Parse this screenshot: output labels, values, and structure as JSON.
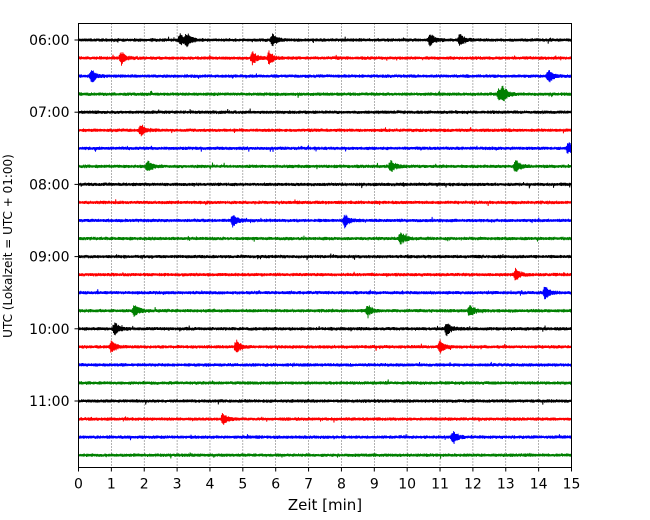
{
  "chart_data": {
    "type": "line",
    "title": "",
    "xlabel": "Zeit  [min]",
    "ylabel": "UTC (Lokalzeit = UTC + 01:00)",
    "xlim": [
      0,
      15
    ],
    "x_ticks": [
      0,
      1,
      2,
      3,
      4,
      5,
      6,
      7,
      8,
      9,
      10,
      11,
      12,
      13,
      14,
      15
    ],
    "x_grid": "dotted vertical at each minute",
    "y_ticks": [
      "06:00",
      "07:00",
      "08:00",
      "09:00",
      "10:00",
      "11:00"
    ],
    "traces_per_hour": 4,
    "minutes_per_trace": 15,
    "trace_start_times": [
      "06:00",
      "06:15",
      "06:30",
      "06:45",
      "07:00",
      "07:15",
      "07:30",
      "07:45",
      "08:00",
      "08:15",
      "08:30",
      "08:45",
      "09:00",
      "09:15",
      "09:30",
      "09:45",
      "10:00",
      "10:15",
      "10:30",
      "10:45",
      "11:00",
      "11:15",
      "11:30",
      "11:45"
    ],
    "color_cycle": [
      "#000000",
      "#ff0000",
      "#0000ff",
      "#008000"
    ],
    "events_note": "approximate positions (min) of prominent amplitude bursts per trace",
    "events": [
      [
        3.1,
        3.3,
        5.9,
        10.7,
        11.6
      ],
      [
        1.3,
        5.3,
        5.8
      ],
      [
        0.4,
        14.3
      ],
      [
        12.8,
        12.9
      ],
      [],
      [
        1.9
      ],
      [
        14.9
      ],
      [
        2.1,
        9.5,
        13.3
      ],
      [],
      [],
      [
        4.7,
        8.1
      ],
      [
        9.8
      ],
      [],
      [
        13.3
      ],
      [
        14.2
      ],
      [
        1.7,
        8.8,
        11.9
      ],
      [
        1.1,
        11.2
      ],
      [
        1.0,
        4.8,
        11.0
      ],
      [],
      [],
      [],
      [
        4.4
      ],
      [
        11.4
      ],
      []
    ]
  }
}
